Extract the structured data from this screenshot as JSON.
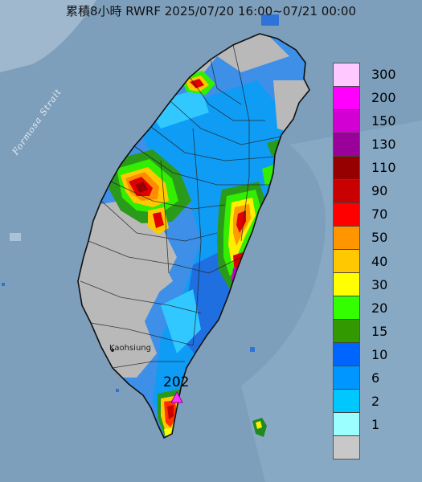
{
  "title": "累積8小時 RWRF 2025/07/20 16:00~07/21 00:00",
  "labels": {
    "strait": "Formosa Strait",
    "city": "Kaohsiung",
    "max_value": "202"
  },
  "colors": {
    "sea": "#7e9fbb",
    "land_base": "#b9b9b9",
    "max_marker": "#ff33ff"
  },
  "legend": [
    {
      "label": "300",
      "color": "#ffc8ff"
    },
    {
      "label": "200",
      "color": "#ff00ff"
    },
    {
      "label": "150",
      "color": "#d200d2"
    },
    {
      "label": "130",
      "color": "#9a009a"
    },
    {
      "label": "110",
      "color": "#960000"
    },
    {
      "label": "90",
      "color": "#c80000"
    },
    {
      "label": "70",
      "color": "#ff0000"
    },
    {
      "label": "50",
      "color": "#ff9600"
    },
    {
      "label": "40",
      "color": "#ffc800"
    },
    {
      "label": "30",
      "color": "#ffff00"
    },
    {
      "label": "20",
      "color": "#33ff00"
    },
    {
      "label": "15",
      "color": "#339900"
    },
    {
      "label": "10",
      "color": "#0064ff"
    },
    {
      "label": "6",
      "color": "#0096ff"
    },
    {
      "label": "2",
      "color": "#00c8ff"
    },
    {
      "label": "1",
      "color": "#9bffff"
    },
    {
      "label": "",
      "color": "#c8c8c8"
    }
  ]
}
